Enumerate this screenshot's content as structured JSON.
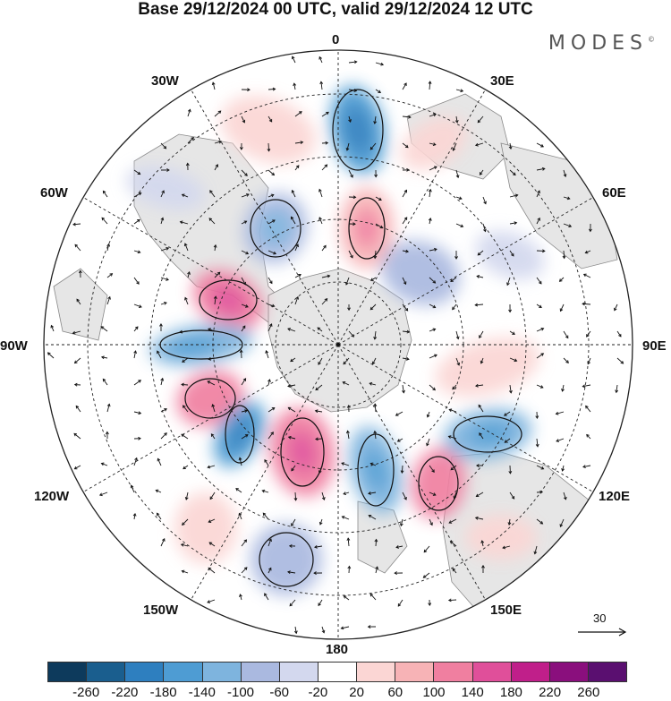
{
  "title": "Base 29/12/2024 00 UTC, valid 29/12/2024 12 UTC",
  "brand": "MODES",
  "brand_mark": "©",
  "meridian_labels": {
    "top": "0",
    "top_right": "30E",
    "top_left": "30W",
    "right_upper": "60E",
    "left_upper": "60W",
    "right": "90E",
    "left": "90W",
    "right_lower": "120E",
    "left_lower": "120W",
    "bottom_right": "150E",
    "bottom_left": "150W",
    "bottom": "180"
  },
  "reference_vector": "30",
  "colors": {
    "land": "#e6e6e6",
    "coast": "#8a8a8a",
    "neg": [
      "#0d3a5c",
      "#1a5e8e",
      "#2e7fbf",
      "#4e9cd3",
      "#7eb4de",
      "#aab9e0",
      "#d3d8ee"
    ],
    "zero": "#ffffff",
    "pos": [
      "#fbd6d4",
      "#f7b3b6",
      "#f07fa0",
      "#e04f9a",
      "#c01f8a",
      "#8a0f7d",
      "#5a0f70"
    ]
  },
  "colorbar": {
    "colors": [
      "#0d3a5c",
      "#1a5e8e",
      "#2e7fbf",
      "#4e9cd3",
      "#7eb4de",
      "#aab9e0",
      "#d3d8ee",
      "#ffffff",
      "#fbd6d4",
      "#f7b3b6",
      "#f07fa0",
      "#e04f9a",
      "#c01f8a",
      "#8a0f7d",
      "#5a0f70"
    ],
    "ticks": [
      "-260",
      "-220",
      "-180",
      "-140",
      "-100",
      "-60",
      "-20",
      "20",
      "60",
      "100",
      "140",
      "180",
      "220",
      "260"
    ]
  }
}
